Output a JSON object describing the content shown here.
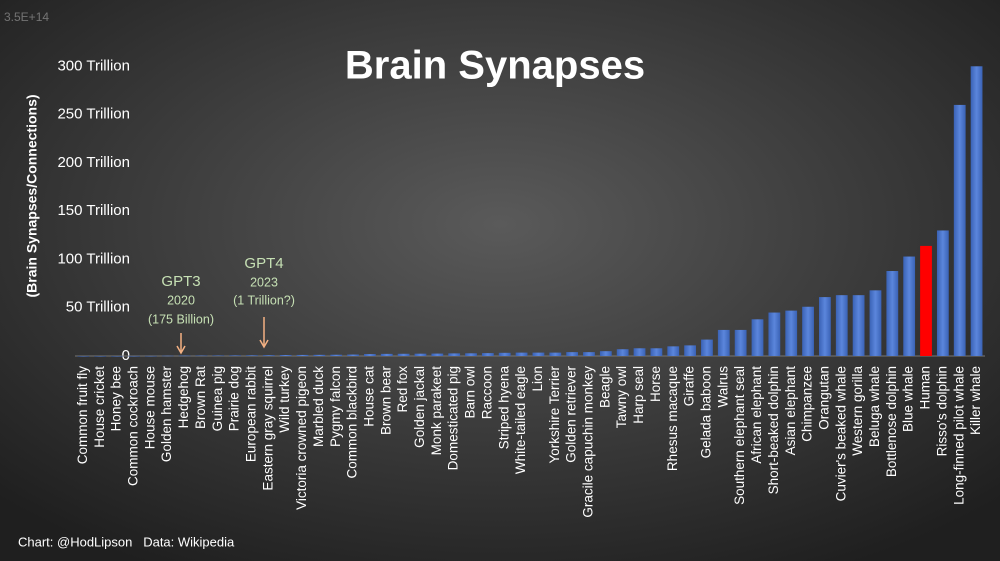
{
  "chart_data": {
    "type": "bar",
    "title": "Brain Synapses",
    "y_label": "(Brain Synapses/Connections)",
    "footer": "Chart: @HodLipson   Data: Wikipedia",
    "categories": [
      "Common fruit fly",
      "House cricket",
      "Honey bee",
      "Common cockroach",
      "House mouse",
      "Golden hamster",
      "Hedgehog",
      "Brown Rat",
      "Guinea pig",
      "Prairie dog",
      "European rabbit",
      "Eastern gray squirrel",
      "Wild turkey",
      "Victoria crowned pigeon",
      "Marbled duck",
      "Pygmy falcon",
      "Common blackbird",
      "House cat",
      "Brown bear",
      "Red fox",
      "Golden jackal",
      "Monk parakeet",
      "Domesticated pig",
      "Barn owl",
      "Raccoon",
      "Striped hyena",
      "White-tailed eagle",
      "Lion",
      "Yorkshire Terrier",
      "Golden retriever",
      "Gracile capuchin monkey",
      "Beagle",
      "Tawny owl",
      "Harp seal",
      "Horse",
      "Rhesus macaque",
      "Giraffe",
      "Gelada baboon",
      "Walrus",
      "Southern elephant seal",
      "African elephant",
      "Short-beaked dolphin",
      "Asian elephant",
      "Chimpanzee",
      "Orangutan",
      "Cuvier's beaked whale",
      "Western gorilla",
      "Beluga whale",
      "Bottlenose dolphin",
      "Blue whale",
      "Human",
      "Risso's dolphin",
      "Long-finned pilot whale",
      "Killer whale"
    ],
    "values": [
      0.0001,
      0.001,
      0.001,
      0.05,
      0.1,
      0.3,
      0.4,
      0.45,
      0.5,
      0.6,
      0.7,
      0.8,
      1,
      1.1,
      1.2,
      1.3,
      1.5,
      2,
      2.2,
      2.3,
      2.4,
      2.5,
      2.7,
      2.8,
      3,
      3.3,
      3.5,
      3.5,
      3.5,
      4,
      4,
      5,
      7,
      8,
      8,
      10,
      11,
      17,
      27,
      27,
      38,
      45,
      47,
      51,
      61,
      63,
      63,
      68,
      88,
      103,
      114,
      130,
      260,
      300
    ],
    "color": "#4a74c9",
    "highlight_color": "#ff0000",
    "highlight_categories": [
      "Human"
    ],
    "ylim": [
      0,
      350
    ],
    "yticks": [
      {
        "value": 0,
        "label": "0"
      },
      {
        "value": 50,
        "label": "50 Trillion"
      },
      {
        "value": 100,
        "label": "100 Trillion"
      },
      {
        "value": 150,
        "label": "150 Trillion"
      },
      {
        "value": 200,
        "label": "200 Trillion"
      },
      {
        "value": 250,
        "label": "250 Trillion"
      },
      {
        "value": 300,
        "label": "300 Trillion"
      },
      {
        "value": 350,
        "label": "3.5E+14"
      }
    ],
    "grid": false,
    "annotations": [
      {
        "lines": [
          "GPT3",
          "2020",
          "(175 Billion)"
        ]
      },
      {
        "lines": [
          "GPT4",
          "2023",
          "(1 Trillion?)"
        ]
      }
    ]
  }
}
